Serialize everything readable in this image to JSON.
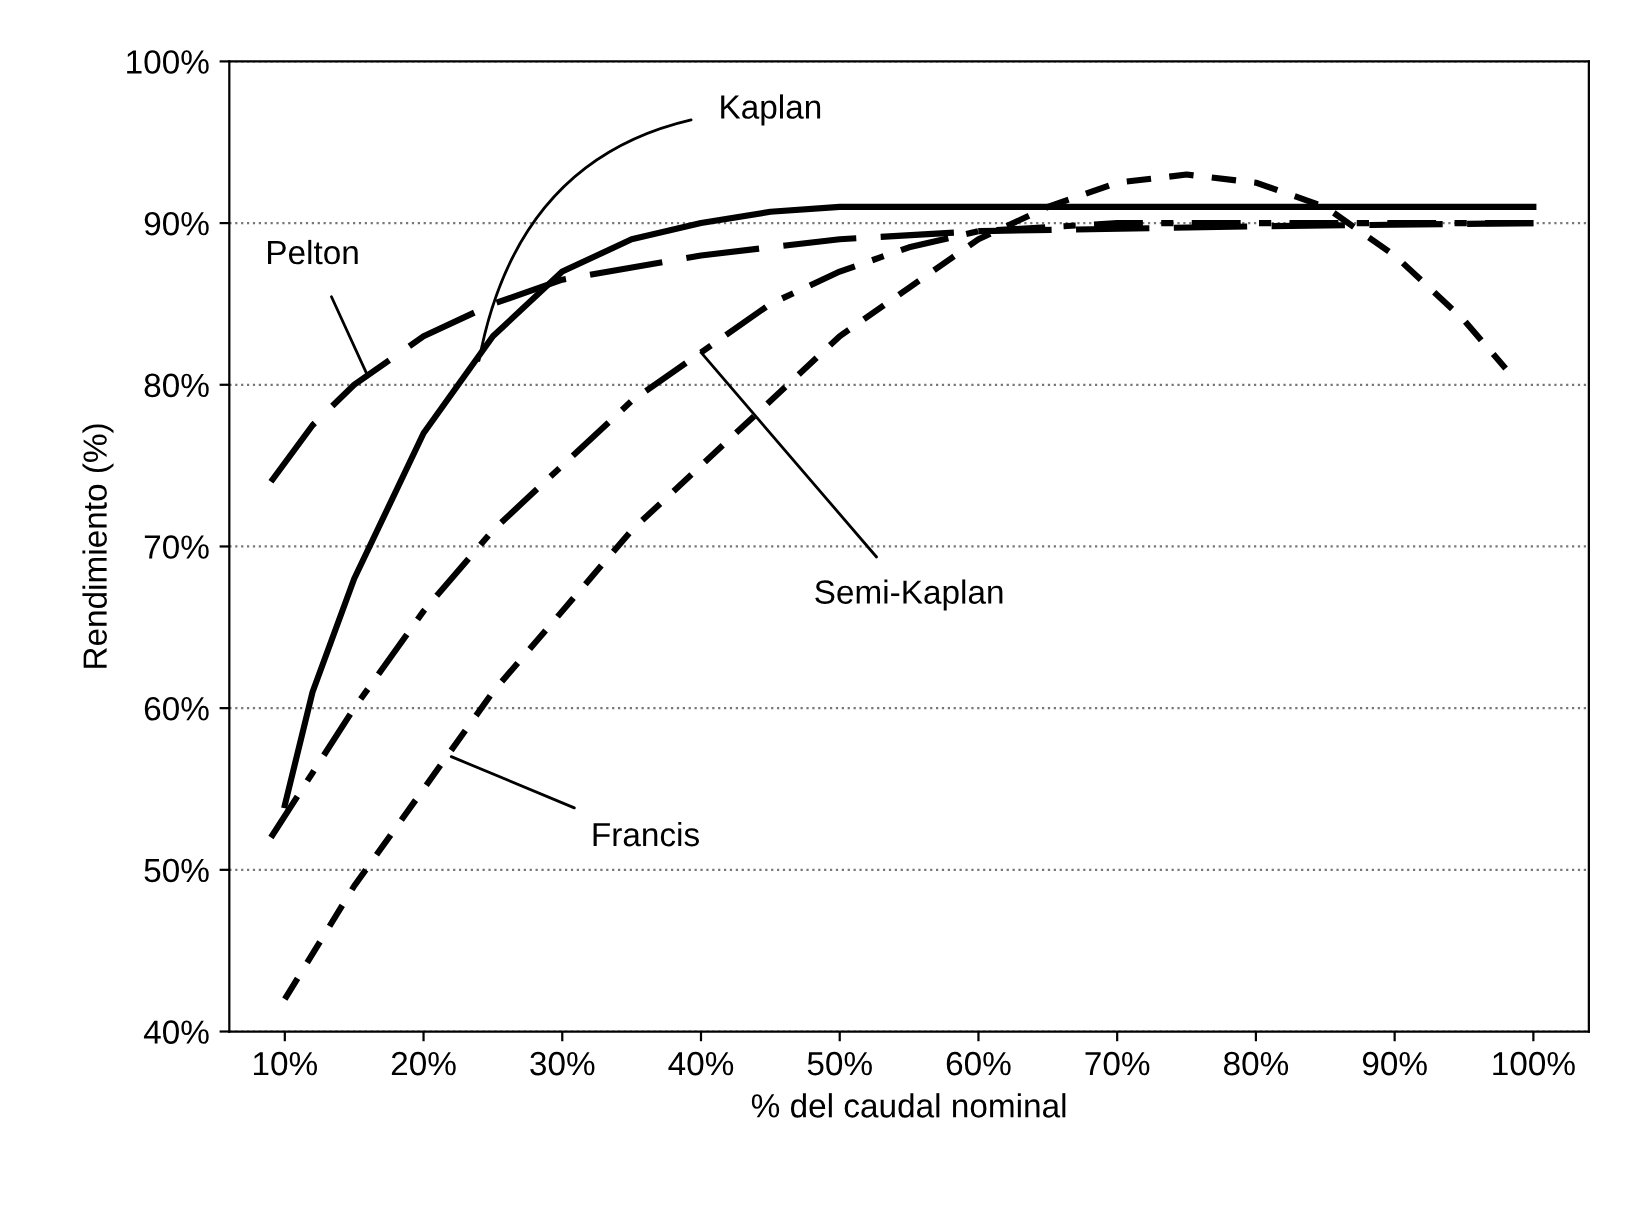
{
  "chart_data": {
    "type": "line",
    "xlabel": "% del caudal nominal",
    "ylabel": "Rendimiento (%)",
    "xlim": [
      6,
      104
    ],
    "ylim": [
      40,
      100
    ],
    "xticks": [
      {
        "value": 10,
        "label": "10%"
      },
      {
        "value": 20,
        "label": "20%"
      },
      {
        "value": 30,
        "label": "30%"
      },
      {
        "value": 40,
        "label": "40%"
      },
      {
        "value": 50,
        "label": "50%"
      },
      {
        "value": 60,
        "label": "60%"
      },
      {
        "value": 70,
        "label": "70%"
      },
      {
        "value": 80,
        "label": "80%"
      },
      {
        "value": 90,
        "label": "90%"
      },
      {
        "value": 100,
        "label": "100%"
      }
    ],
    "yticks": [
      {
        "value": 40,
        "label": "40%"
      },
      {
        "value": 50,
        "label": "50%"
      },
      {
        "value": 60,
        "label": "60%"
      },
      {
        "value": 70,
        "label": "70%"
      },
      {
        "value": 80,
        "label": "80%"
      },
      {
        "value": 90,
        "label": "90%"
      },
      {
        "value": 100,
        "label": "100%"
      }
    ],
    "grid": "y",
    "marker": "none",
    "series": [
      {
        "color": "#000000",
        "line_style": "solid",
        "x": [
          10,
          12,
          15,
          20,
          25,
          30,
          35,
          40,
          45,
          50,
          60,
          80,
          100
        ],
        "values": [
          54,
          61,
          68,
          77,
          83,
          87,
          89,
          90,
          90.7,
          91,
          91,
          91,
          91
        ]
      },
      {
        "color": "#000000",
        "line_style": "dashed",
        "x": [
          9,
          12,
          15,
          20,
          25,
          30,
          40,
          50,
          60,
          80,
          100
        ],
        "values": [
          74,
          77.5,
          80,
          83,
          85,
          86.5,
          88,
          89,
          89.5,
          89.8,
          90
        ]
      },
      {
        "color": "#000000",
        "line_style": "dashdot",
        "x": [
          9,
          12,
          15,
          20,
          25,
          30,
          35,
          40,
          45,
          50,
          55,
          60,
          70,
          80,
          100
        ],
        "values": [
          52,
          56,
          60,
          66,
          71,
          75,
          79,
          82,
          85,
          87,
          88.5,
          89.5,
          90,
          90,
          90
        ]
      },
      {
        "color": "#000000",
        "line_style": "dotted",
        "x": [
          10,
          15,
          20,
          25,
          30,
          35,
          40,
          45,
          50,
          55,
          60,
          65,
          70,
          75,
          80,
          85,
          90,
          95,
          98
        ],
        "values": [
          42,
          49,
          55,
          61,
          66,
          71,
          75,
          79,
          83,
          86,
          89,
          91,
          92.5,
          93,
          92.5,
          91,
          88,
          84,
          81
        ]
      }
    ],
    "annotations": [
      {
        "text": "Kaplan",
        "x": 24,
        "y": 81.5
      },
      {
        "text": "Pelton",
        "x": 16,
        "y": 80.5
      },
      {
        "text": "Semi-Kaplan",
        "x": 40,
        "y": 82
      },
      {
        "text": "Francis",
        "x": 22,
        "y": 57
      }
    ]
  }
}
